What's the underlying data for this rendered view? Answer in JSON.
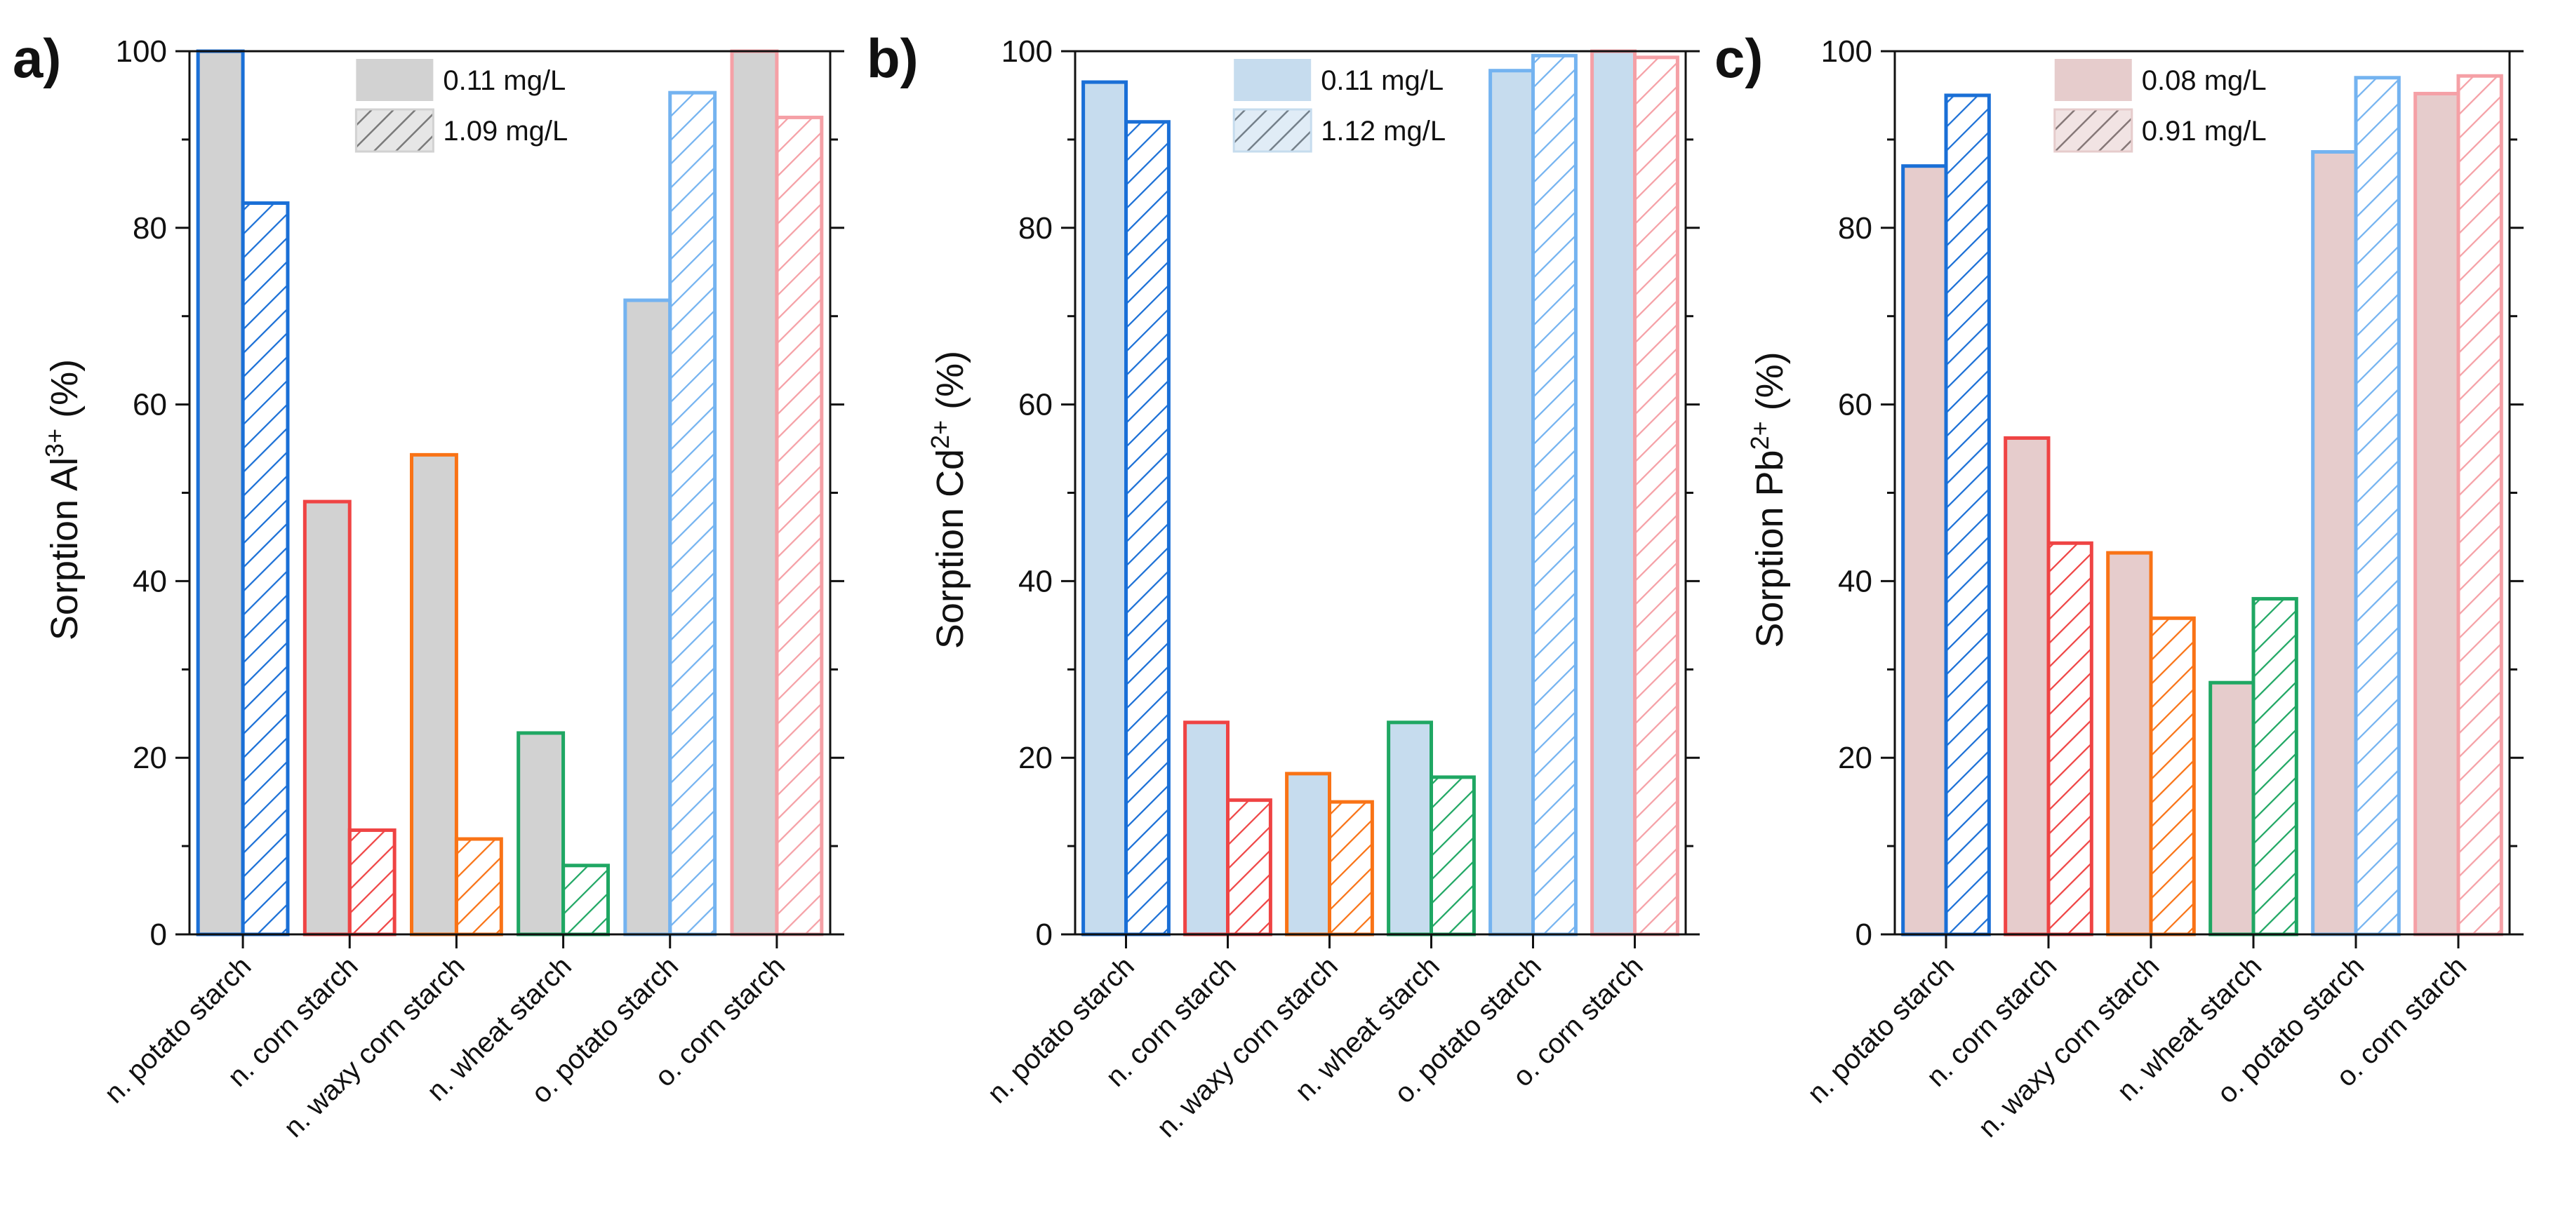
{
  "categories": [
    "n. potato starch",
    "n. corn starch",
    "n. waxy corn starch",
    "n. wheat starch",
    "o. potato starch",
    "o. corn starch"
  ],
  "category_colors": [
    "#1a6fd6",
    "#ef4444",
    "#f97316",
    "#1fa763",
    "#74b3f0",
    "#f5a0a6"
  ],
  "chart_data": [
    {
      "type": "bar",
      "panel_label": "a)",
      "ylabel": "Sorption Al",
      "ylabel_sup": "3+",
      "ylabel_suffix": " (%)",
      "ylim": [
        0,
        100
      ],
      "yticks": [
        0,
        20,
        40,
        60,
        80,
        100
      ],
      "fill_color": "#d2d2d2",
      "series": [
        {
          "name": "0.11 mg/L",
          "hatched": false,
          "values": [
            100,
            49,
            54.3,
            22.8,
            71.8,
            100
          ]
        },
        {
          "name": "1.09 mg/L",
          "hatched": true,
          "values": [
            82.8,
            11.8,
            10.8,
            7.8,
            95.3,
            92.5
          ]
        }
      ],
      "legend_position": "top-center"
    },
    {
      "type": "bar",
      "panel_label": "b)",
      "ylabel": "Sorption Cd",
      "ylabel_sup": "2+",
      "ylabel_suffix": " (%)",
      "ylim": [
        0,
        100
      ],
      "yticks": [
        0,
        20,
        40,
        60,
        80,
        100
      ],
      "fill_color": "#c6dcee",
      "series": [
        {
          "name": "0.11 mg/L",
          "hatched": false,
          "values": [
            96.5,
            24,
            18.2,
            24,
            97.8,
            100
          ]
        },
        {
          "name": "1.12 mg/L",
          "hatched": true,
          "values": [
            92,
            15.2,
            15,
            17.8,
            99.5,
            99.3
          ]
        }
      ],
      "legend_position": "top-center"
    },
    {
      "type": "bar",
      "panel_label": "c)",
      "ylabel": "Sorption Pb",
      "ylabel_sup": "2+",
      "ylabel_suffix": " (%)",
      "ylim": [
        0,
        100
      ],
      "yticks": [
        0,
        20,
        40,
        60,
        80,
        100
      ],
      "fill_color": "#e6cccc",
      "series": [
        {
          "name": "0.08 mg/L",
          "hatched": false,
          "values": [
            87,
            56.2,
            43.2,
            28.5,
            88.6,
            95.2
          ]
        },
        {
          "name": "0.91 mg/L",
          "hatched": true,
          "values": [
            95,
            44.3,
            35.8,
            38,
            97,
            97.2
          ]
        }
      ],
      "legend_position": "top-center"
    }
  ]
}
